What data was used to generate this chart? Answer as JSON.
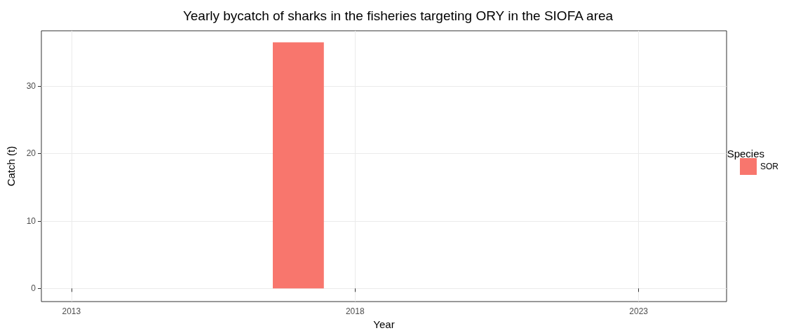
{
  "chart_data": {
    "type": "bar",
    "title": "Yearly bycatch of sharks in the fisheries targeting ORY in the SIOFA area",
    "xlabel": "Year",
    "ylabel": "Catch (t)",
    "legend_title": "Species",
    "x": [
      2017
    ],
    "series": [
      {
        "name": "SOR",
        "color": "#f8766d",
        "values": [
          36.5
        ]
      }
    ],
    "xlim": [
      2012.47,
      2024.55
    ],
    "xticks": [
      2013,
      2018,
      2023
    ],
    "ylim": [
      -1.95,
      38.2
    ],
    "yticks": [
      0,
      10,
      20,
      30
    ],
    "grid": true,
    "legend": "right"
  }
}
